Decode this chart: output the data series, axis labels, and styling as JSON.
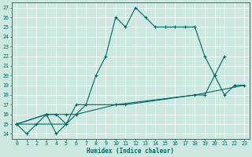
{
  "xlabel": "Humidex (Indice chaleur)",
  "bg_color": "#cce8e0",
  "line_color": "#006666",
  "grid_color": "#ffffff",
  "xlim": [
    -0.5,
    23.5
  ],
  "ylim": [
    13.5,
    27.5
  ],
  "yticks": [
    14,
    15,
    16,
    17,
    18,
    19,
    20,
    21,
    22,
    23,
    24,
    25,
    26,
    27
  ],
  "xticks": [
    0,
    1,
    2,
    3,
    4,
    5,
    6,
    7,
    8,
    9,
    10,
    11,
    12,
    13,
    14,
    15,
    16,
    17,
    18,
    19,
    20,
    21,
    22,
    23
  ],
  "line1_x": [
    0,
    1,
    2,
    3,
    4,
    5
  ],
  "line1_y": [
    15,
    14,
    15,
    16,
    14,
    15
  ],
  "line2_x": [
    0,
    3,
    4,
    5,
    6,
    7,
    8,
    9,
    10,
    11,
    12,
    13,
    14,
    15,
    16,
    17,
    18,
    19,
    20,
    21
  ],
  "line2_y": [
    15,
    16,
    16,
    15,
    17,
    17,
    20,
    22,
    26,
    25,
    27,
    26,
    25,
    25,
    25,
    25,
    25,
    22,
    20,
    22
  ],
  "line3_x": [
    0,
    3,
    5,
    6,
    7,
    10,
    11,
    18,
    19,
    20,
    21,
    22,
    23
  ],
  "line3_y": [
    15,
    16,
    16,
    16,
    17,
    17,
    17,
    18,
    18,
    20,
    18,
    19,
    19
  ],
  "line4_x": [
    0,
    5,
    6,
    10,
    18,
    23
  ],
  "line4_y": [
    15,
    15,
    16,
    17,
    18,
    19
  ]
}
